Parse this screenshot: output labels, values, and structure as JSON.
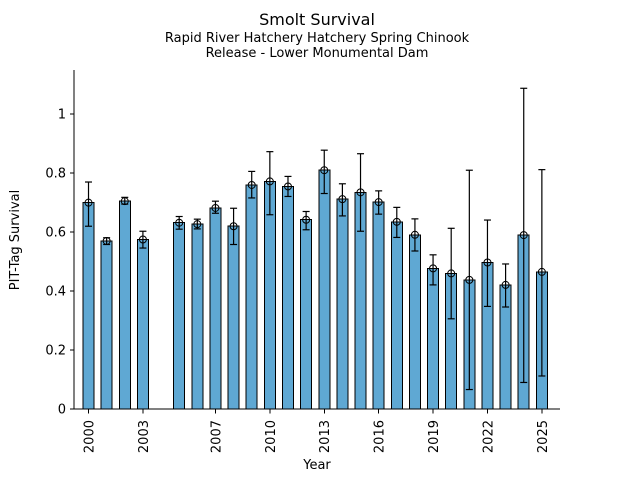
{
  "chart_data": {
    "type": "bar",
    "title": "Smolt Survival",
    "subtitle1": "Rapid River Hatchery Hatchery Spring Chinook",
    "subtitle2": "Release - Lower Monumental Dam",
    "xlabel": "Year",
    "ylabel": "PIT-Tag Survival",
    "grid": false,
    "legend": "none",
    "marker": "open-circle",
    "error_caps": true,
    "bar_color": "#5fa8d3",
    "bar_edge_color": "#000000",
    "error_color": "#000000",
    "xlim": [
      1999.2,
      2026.0
    ],
    "ylim": [
      0,
      1.15
    ],
    "yticks": [
      0,
      0.2,
      0.4,
      0.6,
      0.8,
      1.0
    ],
    "ytick_labels": [
      "0",
      "0.2",
      "0.4",
      "0.6",
      "0.8",
      "1"
    ],
    "xticks": [
      2000,
      2003,
      2007,
      2010,
      2013,
      2016,
      2019,
      2022,
      2025
    ],
    "xtick_labels": [
      "2000",
      "2003",
      "2007",
      "2010",
      "2013",
      "2016",
      "2019",
      "2022",
      "2025"
    ],
    "years": [
      2000,
      2001,
      2002,
      2003,
      2005,
      2006,
      2007,
      2008,
      2009,
      2010,
      2011,
      2012,
      2013,
      2014,
      2015,
      2016,
      2017,
      2018,
      2019,
      2020,
      2021,
      2022,
      2023,
      2024,
      2025
    ],
    "values": [
      0.7,
      0.57,
      0.705,
      0.575,
      0.632,
      0.627,
      0.682,
      0.62,
      0.76,
      0.772,
      0.755,
      0.642,
      0.81,
      0.712,
      0.735,
      0.702,
      0.635,
      0.591,
      0.477,
      0.46,
      0.438,
      0.497,
      0.421,
      0.59,
      0.465
    ],
    "err_low": [
      0.62,
      0.558,
      0.695,
      0.546,
      0.61,
      0.611,
      0.664,
      0.558,
      0.716,
      0.659,
      0.721,
      0.608,
      0.731,
      0.655,
      0.603,
      0.661,
      0.582,
      0.536,
      0.421,
      0.306,
      0.066,
      0.348,
      0.346,
      0.09,
      0.112
    ],
    "err_high": [
      0.77,
      0.581,
      0.718,
      0.603,
      0.653,
      0.644,
      0.705,
      0.681,
      0.806,
      0.873,
      0.789,
      0.67,
      0.878,
      0.764,
      0.866,
      0.74,
      0.684,
      0.645,
      0.523,
      0.613,
      0.81,
      0.641,
      0.492,
      1.088,
      0.812
    ]
  }
}
